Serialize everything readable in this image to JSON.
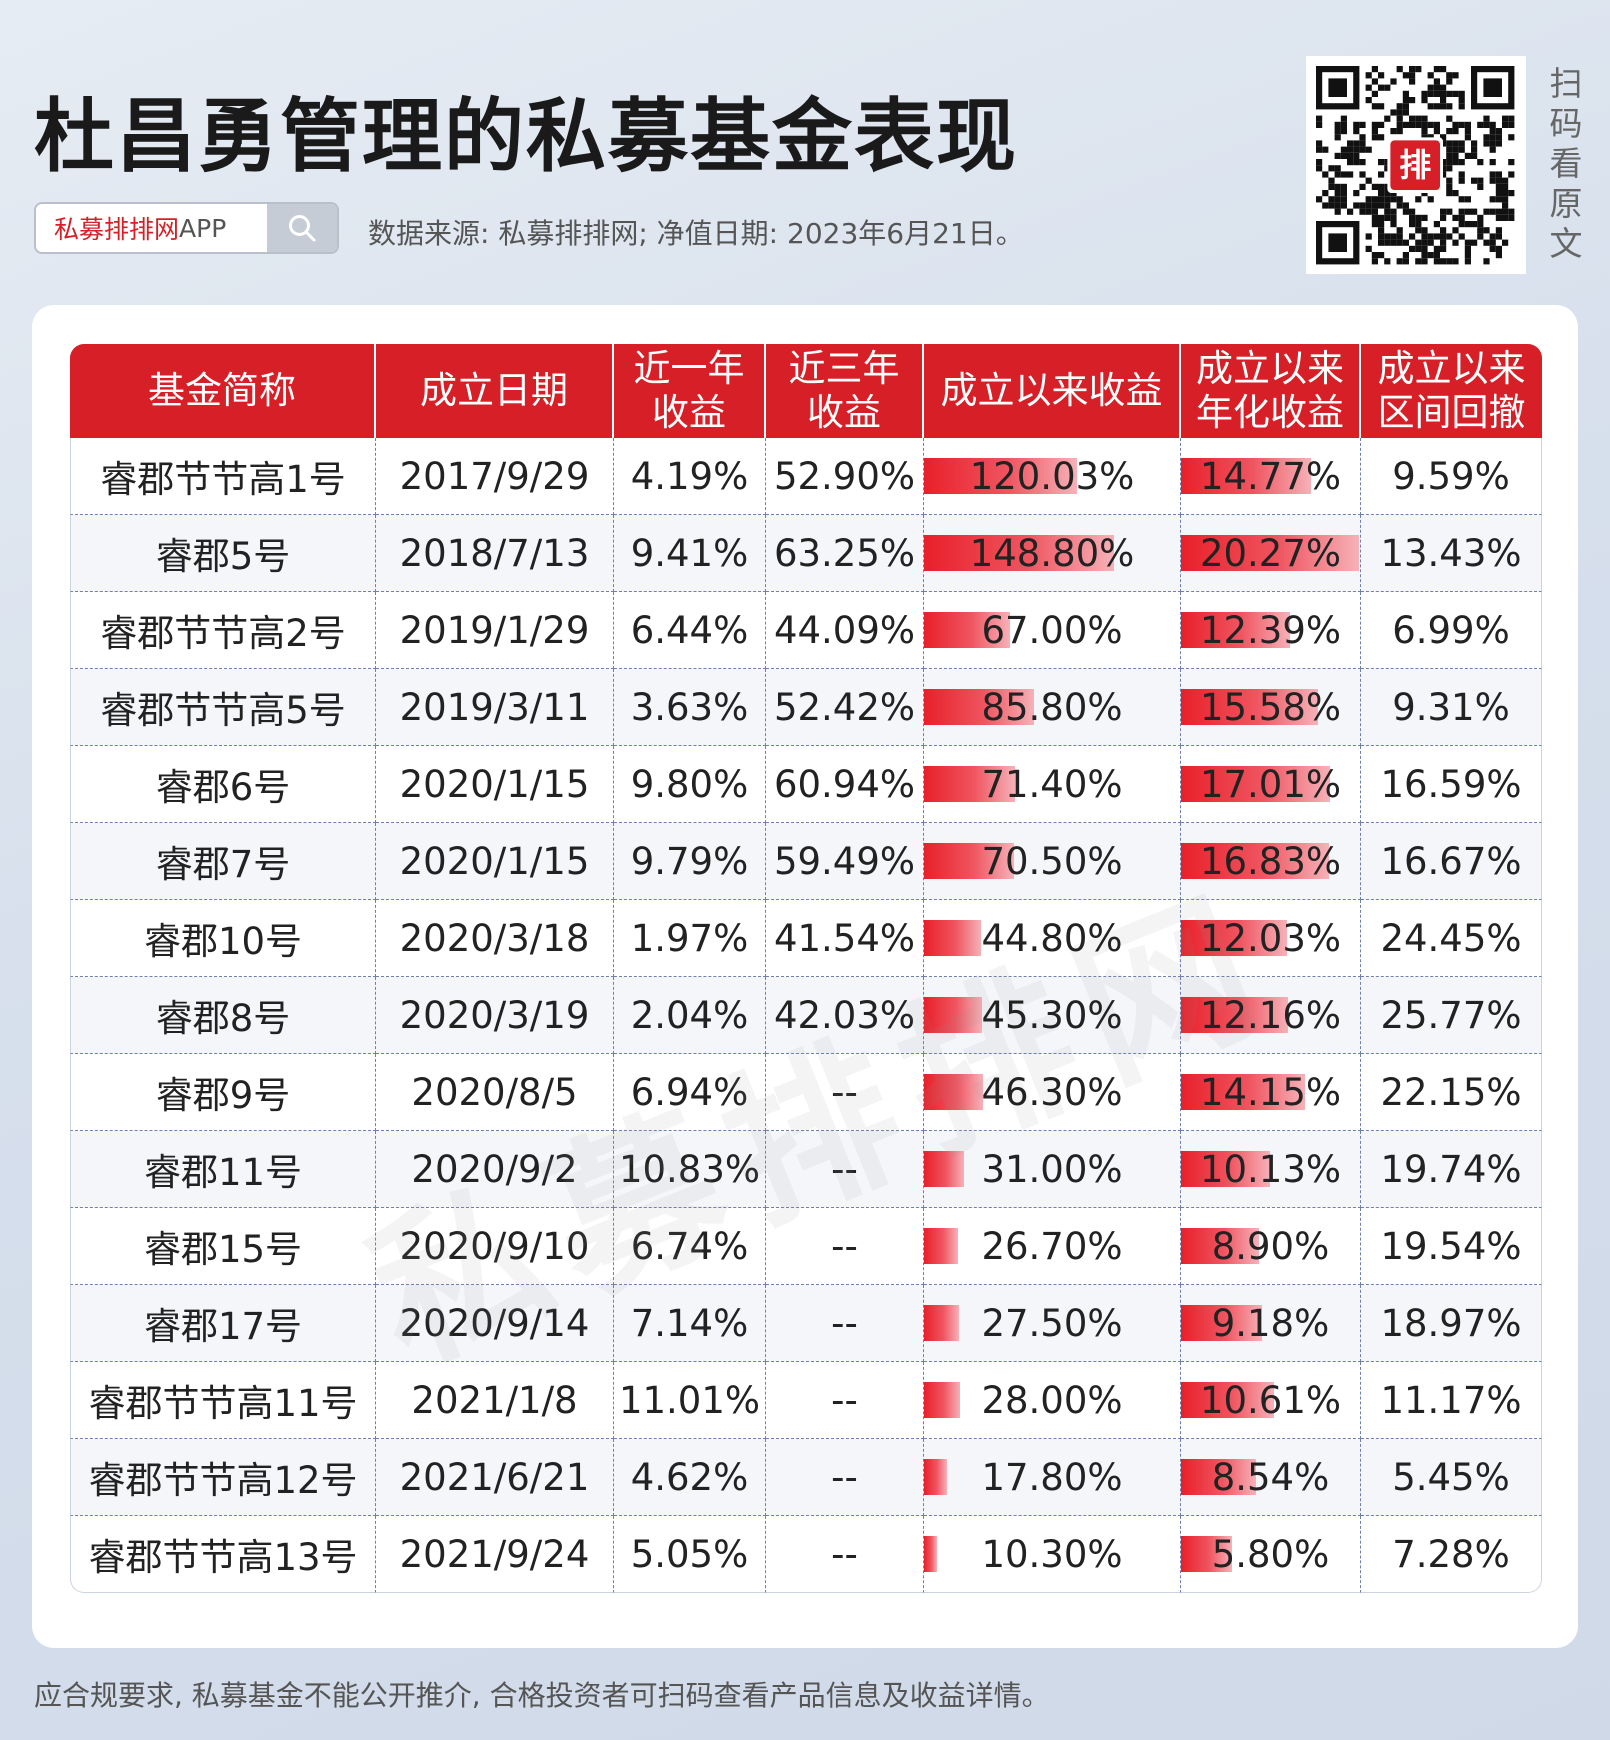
{
  "title": "杜昌勇管理的私募基金表现",
  "search": {
    "brand": "私募排排网",
    "app": "APP",
    "icon": "search-icon"
  },
  "source_text": "数据来源: 私募排排网; 净值日期: 2023年6月21日。",
  "qr": {
    "badge": "排",
    "side_label": [
      "扫",
      "码",
      "看",
      "原",
      "文"
    ]
  },
  "watermark": "私募排排网",
  "table": {
    "headers": [
      [
        "基金简称"
      ],
      [
        "成立日期"
      ],
      [
        "近一年",
        "收益"
      ],
      [
        "近三年",
        "收益"
      ],
      [
        "成立以来收益"
      ],
      [
        "成立以来",
        "年化收益"
      ],
      [
        "成立以来",
        "区间回撤"
      ]
    ],
    "rows": [
      {
        "name": "睿郡节节高1号",
        "date": "2017/9/29",
        "y1": "4.19%",
        "y3": "52.90%",
        "since": "120.03%",
        "since_pct": 80.7,
        "ann": "14.77%",
        "ann_pct": 72.9,
        "dd": "9.59%"
      },
      {
        "name": "睿郡5号",
        "date": "2018/7/13",
        "y1": "9.41%",
        "y3": "63.25%",
        "since": "148.80%",
        "since_pct": 100,
        "ann": "20.27%",
        "ann_pct": 100,
        "dd": "13.43%"
      },
      {
        "name": "睿郡节节高2号",
        "date": "2019/1/29",
        "y1": "6.44%",
        "y3": "44.09%",
        "since": "67.00%",
        "since_pct": 45.0,
        "ann": "12.39%",
        "ann_pct": 61.1,
        "dd": "6.99%"
      },
      {
        "name": "睿郡节节高5号",
        "date": "2019/3/11",
        "y1": "3.63%",
        "y3": "52.42%",
        "since": "85.80%",
        "since_pct": 57.7,
        "ann": "15.58%",
        "ann_pct": 76.9,
        "dd": "9.31%"
      },
      {
        "name": "睿郡6号",
        "date": "2020/1/15",
        "y1": "9.80%",
        "y3": "60.94%",
        "since": "71.40%",
        "since_pct": 48.0,
        "ann": "17.01%",
        "ann_pct": 83.9,
        "dd": "16.59%"
      },
      {
        "name": "睿郡7号",
        "date": "2020/1/15",
        "y1": "9.79%",
        "y3": "59.49%",
        "since": "70.50%",
        "since_pct": 47.4,
        "ann": "16.83%",
        "ann_pct": 83.0,
        "dd": "16.67%"
      },
      {
        "name": "睿郡10号",
        "date": "2020/3/18",
        "y1": "1.97%",
        "y3": "41.54%",
        "since": "44.80%",
        "since_pct": 30.1,
        "ann": "12.03%",
        "ann_pct": 59.3,
        "dd": "24.45%"
      },
      {
        "name": "睿郡8号",
        "date": "2020/3/19",
        "y1": "2.04%",
        "y3": "42.03%",
        "since": "45.30%",
        "since_pct": 30.4,
        "ann": "12.16%",
        "ann_pct": 60.0,
        "dd": "25.77%"
      },
      {
        "name": "睿郡9号",
        "date": "2020/8/5",
        "y1": "6.94%",
        "y3": "--",
        "since": "46.30%",
        "since_pct": 31.1,
        "ann": "14.15%",
        "ann_pct": 69.8,
        "dd": "22.15%"
      },
      {
        "name": "睿郡11号",
        "date": "2020/9/2",
        "y1": "10.83%",
        "y3": "--",
        "since": "31.00%",
        "since_pct": 20.8,
        "ann": "10.13%",
        "ann_pct": 50.0,
        "dd": "19.74%"
      },
      {
        "name": "睿郡15号",
        "date": "2020/9/10",
        "y1": "6.74%",
        "y3": "--",
        "since": "26.70%",
        "since_pct": 17.9,
        "ann": "8.90%",
        "ann_pct": 43.9,
        "dd": "19.54%"
      },
      {
        "name": "睿郡17号",
        "date": "2020/9/14",
        "y1": "7.14%",
        "y3": "--",
        "since": "27.50%",
        "since_pct": 18.5,
        "ann": "9.18%",
        "ann_pct": 45.3,
        "dd": "18.97%"
      },
      {
        "name": "睿郡节节高11号",
        "date": "2021/1/8",
        "y1": "11.01%",
        "y3": "--",
        "since": "28.00%",
        "since_pct": 18.8,
        "ann": "10.61%",
        "ann_pct": 52.3,
        "dd": "11.17%"
      },
      {
        "name": "睿郡节节高12号",
        "date": "2021/6/21",
        "y1": "4.62%",
        "y3": "--",
        "since": "17.80%",
        "since_pct": 12.0,
        "ann": "8.54%",
        "ann_pct": 42.1,
        "dd": "5.45%"
      },
      {
        "name": "睿郡节节高13号",
        "date": "2021/9/24",
        "y1": "5.05%",
        "y3": "--",
        "since": "10.30%",
        "since_pct": 6.9,
        "ann": "5.80%",
        "ann_pct": 28.6,
        "dd": "7.28%"
      }
    ]
  },
  "footer": "应合规要求, 私募基金不能公开推介, 合格投资者可扫码查看产品信息及收益详情。",
  "colors": {
    "accent": "#d61f26",
    "bar_start": "#e8202a",
    "bar_end": "#f6b1b8"
  }
}
